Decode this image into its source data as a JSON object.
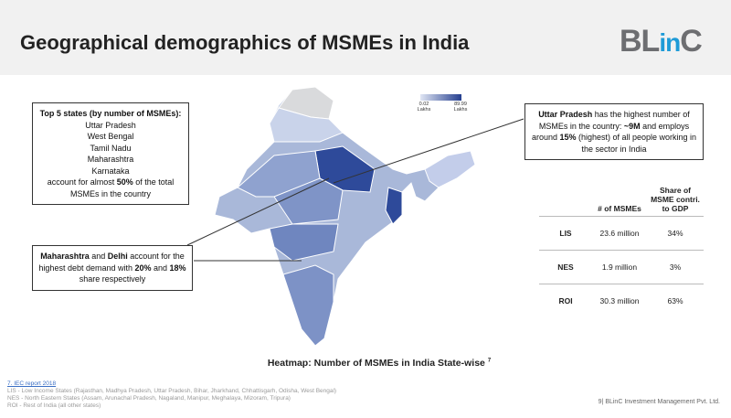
{
  "header": {
    "title": "Geographical demographics of MSMEs in India",
    "logo": [
      "BL",
      "in",
      "C"
    ]
  },
  "top_states_box": {
    "heading": "Top 5 states (by number of MSMEs):",
    "states": [
      "Uttar Pradesh",
      "West Bengal",
      "Tamil Nadu",
      "Maharashtra",
      "Karnataka"
    ],
    "note": [
      {
        "text": "account for almost "
      },
      {
        "text": "50%",
        "bold": true
      },
      {
        "text": " of the total MSMEs in the country"
      }
    ]
  },
  "debt_box": {
    "runs": [
      {
        "text": "Maharashtra",
        "bold": true
      },
      {
        "text": " and "
      },
      {
        "text": "Delhi",
        "bold": true
      },
      {
        "text": " account for the highest debt demand with "
      },
      {
        "text": "20%",
        "bold": true
      },
      {
        "text": " and "
      },
      {
        "text": "18%",
        "bold": true
      },
      {
        "text": " share respectively"
      }
    ]
  },
  "up_box": {
    "runs": [
      {
        "text": "Uttar Pradesh",
        "bold": true
      },
      {
        "text": "  has the highest number of MSMEs in the country: "
      },
      {
        "text": "~9M",
        "bold": true
      },
      {
        "text": " and employs around "
      },
      {
        "text": "15%",
        "bold": true
      },
      {
        "text": " (highest) of all people working in the sector in India"
      }
    ]
  },
  "map_legend": {
    "min": "0.02",
    "max": "89.99",
    "unit": "Lakhs"
  },
  "map_caption": {
    "text": "Heatmap: Number of MSMEs in India State-wise",
    "ref": "7"
  },
  "table": {
    "headers": [
      "# of MSMEs",
      "Share of MSME contri. to GDP"
    ],
    "rows": [
      [
        "LIS",
        "23.6 million",
        "34%"
      ],
      [
        "NES",
        "1.9 million",
        "3%"
      ],
      [
        "ROI",
        "30.3 million",
        "63%"
      ]
    ]
  },
  "footnotes": [
    "7. IEC report 2018",
    "LIS - Low Income States (Rajasthan, Madhya Pradesh, Uttar Pradesh, Bihar, Jharkhand, Chhattisgarh, Odisha, West Bengal)",
    "NES - North Eastern States (Assam, Arunachal Pradesh, Nagaland, Manipur, Meghalaya, Mizoram, Tripura)",
    "ROI - Rest of India (all other states)"
  ],
  "page_footer": "9| BLinC Investment Management Pvt. Ltd."
}
